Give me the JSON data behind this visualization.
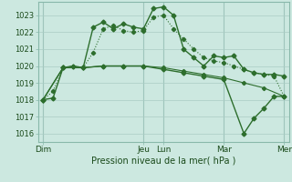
{
  "background_color": "#cce8e0",
  "grid_color": "#aaccc4",
  "line_color": "#2d6e2d",
  "xlabel": "Pression niveau de la mer( hPa )",
  "ylim": [
    1015.5,
    1023.8
  ],
  "yticks": [
    1016,
    1017,
    1018,
    1019,
    1020,
    1021,
    1022,
    1023
  ],
  "day_labels": [
    "Dim",
    "Jeu",
    "Lun",
    "Mar",
    "Mer"
  ],
  "day_positions": [
    0,
    60,
    72,
    108,
    144
  ],
  "series1_x": [
    0,
    6,
    12,
    18,
    24,
    30,
    36,
    42,
    48,
    54,
    60,
    66,
    72,
    78,
    84,
    90,
    96,
    102,
    108,
    114,
    120,
    126,
    132,
    138,
    144
  ],
  "series1_y": [
    1018.0,
    1018.1,
    1019.9,
    1020.0,
    1019.9,
    1022.3,
    1022.6,
    1022.2,
    1022.5,
    1022.3,
    1022.2,
    1023.4,
    1023.5,
    1023.0,
    1021.0,
    1020.5,
    1020.0,
    1020.6,
    1020.5,
    1020.6,
    1019.8,
    1019.6,
    1019.5,
    1019.5,
    1019.4
  ],
  "series2_x": [
    0,
    6,
    12,
    18,
    24,
    30,
    36,
    42,
    48,
    54,
    60,
    66,
    72,
    78,
    84,
    90,
    96,
    102,
    108,
    114,
    120,
    126,
    132,
    138,
    144
  ],
  "series2_y": [
    1018.0,
    1018.5,
    1019.9,
    1020.0,
    1019.9,
    1020.8,
    1022.2,
    1022.4,
    1022.1,
    1022.0,
    1022.1,
    1022.9,
    1023.0,
    1022.2,
    1021.6,
    1021.0,
    1020.5,
    1020.3,
    1020.2,
    1020.0,
    1019.8,
    1019.6,
    1019.5,
    1019.4,
    1018.2
  ],
  "series3_x": [
    0,
    12,
    24,
    36,
    48,
    60,
    72,
    84,
    96,
    108,
    120,
    132,
    144
  ],
  "series3_y": [
    1018.0,
    1019.9,
    1019.9,
    1020.0,
    1020.0,
    1020.0,
    1019.9,
    1019.7,
    1019.5,
    1019.3,
    1019.0,
    1018.7,
    1018.2
  ],
  "series4_x": [
    0,
    12,
    24,
    36,
    48,
    60,
    72,
    84,
    96,
    108,
    120,
    126,
    132,
    138,
    144
  ],
  "series4_y": [
    1018.0,
    1019.9,
    1019.9,
    1020.0,
    1020.0,
    1020.0,
    1019.8,
    1019.6,
    1019.4,
    1019.2,
    1016.0,
    1016.9,
    1017.5,
    1018.2,
    1018.2
  ]
}
